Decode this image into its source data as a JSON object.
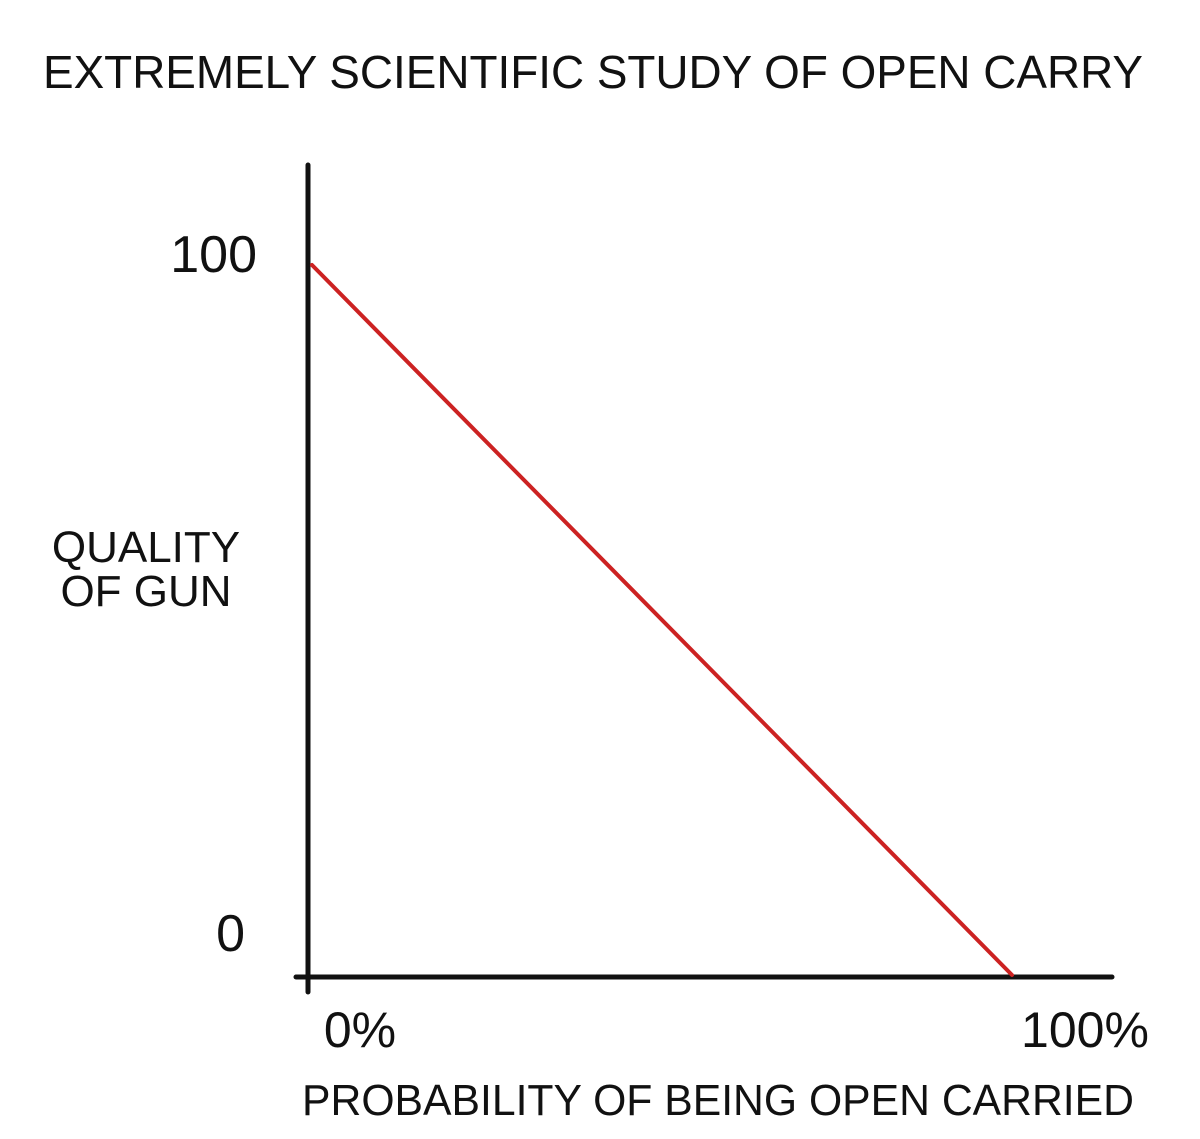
{
  "chart_data": {
    "type": "line",
    "title": "EXTREMELY SCIENTIFIC STUDY OF OPEN CARRY",
    "xlabel": "PROBABILITY OF BEING OPEN CARRIED",
    "ylabel_lines": [
      "QUALITY",
      "OF GUN"
    ],
    "x_tick_labels": [
      "0%",
      "100%"
    ],
    "y_tick_labels": [
      "100",
      "0"
    ],
    "xlim": [
      0,
      100
    ],
    "ylim": [
      0,
      100
    ],
    "grid": false,
    "series": [
      {
        "color": "#cc2222",
        "x": [
          0,
          100
        ],
        "y": [
          100,
          0
        ]
      }
    ],
    "colors": {
      "axis": "#111111",
      "line": "#cc2222",
      "background": "#ffffff"
    }
  }
}
